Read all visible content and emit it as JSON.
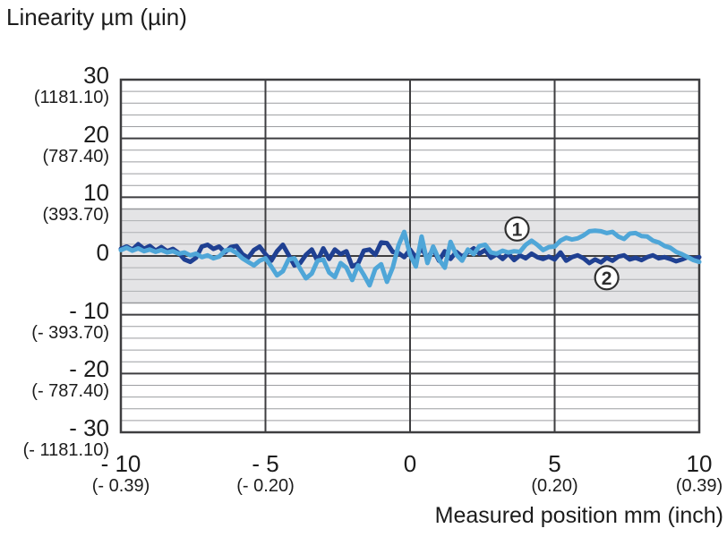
{
  "page": {
    "background": "#ffffff"
  },
  "chart_data": {
    "type": "line",
    "title": "Linearity µm (µin)",
    "xlabel": "Measured position mm (inch)",
    "xlim": [
      -10,
      10
    ],
    "ylim": [
      -30,
      30
    ],
    "x_major_step": 5,
    "y_major_step": 10,
    "y_minor_step": 2,
    "grid": "on",
    "tolerance_band": {
      "from": -8,
      "to": 8,
      "stripe_step": 2
    },
    "colors": {
      "major_grid": "#3e3e40",
      "minor_grid": "#9c9ea1",
      "band_fill": "#e4e4e6",
      "band_stripe": "#aeafb2",
      "band_edge": "#98999c",
      "axis_text": "#1c1c1c",
      "marker_stroke": "#2f2f2f",
      "marker_fill": "#ffffff"
    },
    "y_ticks": [
      {
        "value": 30,
        "label": "30",
        "sub": "(1181.10)"
      },
      {
        "value": 20,
        "label": "20",
        "sub": "(787.40)"
      },
      {
        "value": 10,
        "label": "10",
        "sub": "(393.70)"
      },
      {
        "value": 0,
        "label": "0",
        "sub": ""
      },
      {
        "value": -10,
        "label": "- 10",
        "sub": "(- 393.70)"
      },
      {
        "value": -20,
        "label": "- 20",
        "sub": "(- 787.40)"
      },
      {
        "value": -30,
        "label": "- 30",
        "sub": "(- 1181.10)"
      }
    ],
    "x_ticks": [
      {
        "value": -10,
        "label": "- 10",
        "sub": "(- 0.39)"
      },
      {
        "value": -5,
        "label": "- 5",
        "sub": "(- 0.20)"
      },
      {
        "value": 0,
        "label": "0",
        "sub": ""
      },
      {
        "value": 5,
        "label": "5",
        "sub": "(0.20)"
      },
      {
        "value": 10,
        "label": "10",
        "sub": "(0.39)"
      }
    ],
    "series": [
      {
        "name": "2",
        "color": "#1f4092",
        "line_width": 5,
        "label_marker": {
          "text": "2",
          "x": 6.8,
          "y": -3.7
        },
        "x_start": -10,
        "x_step": 0.2,
        "values": [
          1.2,
          1.6,
          1.1,
          2.0,
          1.2,
          1.7,
          0.9,
          1.5,
          0.8,
          1.2,
          0.5,
          -0.6,
          -1.0,
          -0.3,
          1.6,
          1.9,
          1.2,
          1.6,
          0.6,
          1.5,
          1.7,
          0.3,
          -0.3,
          1.0,
          1.6,
          0.3,
          -0.8,
          0.8,
          1.9,
          0.2,
          -1.6,
          -1.2,
          0.2,
          1.1,
          -0.8,
          1.3,
          -0.5,
          1.1,
          0.3,
          0.8,
          -1.8,
          -1.3,
          0.9,
          1.1,
          0.2,
          2.3,
          2.2,
          0.7,
          0.5,
          -0.2,
          1.1,
          -0.3,
          1.4,
          -0.5,
          1.2,
          -0.8,
          0.8,
          -0.5,
          0.7,
          -0.1,
          0.6,
          1.3,
          0.4,
          1.0,
          -0.3,
          0.3,
          -0.5,
          0.4,
          -0.7,
          0.1,
          -0.4,
          0.4,
          -0.2,
          -0.5,
          -0.1,
          -0.6,
          0.6,
          -0.8,
          -0.2,
          0.1,
          -0.4,
          -1.2,
          -0.6,
          -1.1,
          -0.3,
          -0.8,
          -0.1,
          0.1,
          -0.6,
          -0.3,
          -0.7,
          -0.2,
          0.1,
          -0.4,
          -0.2,
          -0.5,
          -0.9,
          -0.6,
          -0.2,
          -0.5,
          -0.2
        ]
      },
      {
        "name": "1",
        "color": "#4fa6d8",
        "line_width": 5,
        "label_marker": {
          "text": "1",
          "x": 3.7,
          "y": 4.6
        },
        "x_start": -10,
        "x_step": 0.2,
        "values": [
          1.0,
          1.4,
          0.9,
          1.3,
          0.8,
          1.1,
          0.7,
          1.0,
          0.6,
          0.8,
          0.4,
          0.6,
          0.1,
          0.4,
          -0.2,
          0.1,
          -0.4,
          -0.1,
          0.9,
          1.1,
          0.5,
          -0.4,
          -1.0,
          -1.6,
          -0.8,
          -0.4,
          -1.8,
          -3.3,
          -2.6,
          -0.6,
          -0.4,
          -2.2,
          -3.8,
          -3.0,
          -0.8,
          -0.6,
          -2.8,
          -3.6,
          -1.2,
          -2.0,
          -4.1,
          -1.6,
          -3.2,
          -5.0,
          -2.2,
          -1.4,
          -4.4,
          -2.0,
          1.8,
          4.1,
          0.2,
          -1.8,
          3.3,
          -1.2,
          1.6,
          -0.6,
          -2.0,
          2.4,
          0.2,
          -0.8,
          1.1,
          0.3,
          1.7,
          1.9,
          0.6,
          0.4,
          0.9,
          0.6,
          0.8,
          0.7,
          1.9,
          2.6,
          1.9,
          1.0,
          1.5,
          1.6,
          2.6,
          3.1,
          2.8,
          3.0,
          3.5,
          4.2,
          4.3,
          4.2,
          3.9,
          4.1,
          3.3,
          2.9,
          3.8,
          3.9,
          3.4,
          3.3,
          2.6,
          2.3,
          1.7,
          1.4,
          0.7,
          0.3,
          -0.2,
          -0.7,
          -1.0
        ]
      }
    ]
  }
}
